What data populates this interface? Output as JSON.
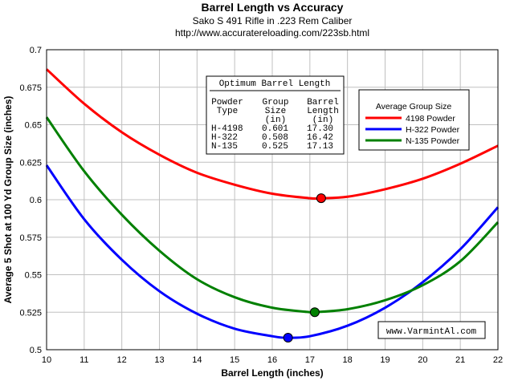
{
  "chart_data": {
    "type": "line",
    "title": "Barrel Length vs Accuracy",
    "subtitle": "Sako S 491 Rifle in .223 Rem Caliber",
    "url": "http://www.accuratereloading.com/223sb.html",
    "xlabel": "Barrel Length (inches)",
    "ylabel": "Average 5 Shot at 100 Yd Group Size (inches)",
    "xlim": [
      10,
      22
    ],
    "ylim": [
      0.5,
      0.7
    ],
    "grid": true,
    "x_ticks": [
      "10",
      "11",
      "12",
      "13",
      "14",
      "15",
      "16",
      "17",
      "18",
      "19",
      "20",
      "21",
      "22"
    ],
    "y_ticks": [
      "0.5",
      "0.525",
      "0.55",
      "0.575",
      "0.6",
      "0.625",
      "0.65",
      "0.675",
      "0.7"
    ],
    "legend": {
      "title": "Average Group Size",
      "position": "top-right",
      "entries": [
        "4198 Powder",
        "H-322 Powder",
        "N-135 Powder"
      ]
    },
    "series": [
      {
        "name": "4198 Powder",
        "color": "#ff0000",
        "x": [
          10,
          11,
          12,
          13,
          14,
          15,
          16,
          17,
          17.3,
          18,
          19,
          20,
          21,
          22
        ],
        "values": [
          0.687,
          0.664,
          0.645,
          0.63,
          0.618,
          0.61,
          0.604,
          0.601,
          0.601,
          0.602,
          0.607,
          0.614,
          0.624,
          0.636
        ],
        "optimum": {
          "x": 17.3,
          "y": 0.601
        }
      },
      {
        "name": "H-322 Powder",
        "color": "#0000ff",
        "x": [
          10,
          11,
          12,
          13,
          14,
          15,
          16,
          16.42,
          17,
          18,
          19,
          20,
          21,
          22
        ],
        "values": [
          0.623,
          0.587,
          0.56,
          0.539,
          0.524,
          0.514,
          0.509,
          0.508,
          0.509,
          0.516,
          0.528,
          0.545,
          0.567,
          0.595
        ],
        "optimum": {
          "x": 16.42,
          "y": 0.508
        }
      },
      {
        "name": "N-135 Powder",
        "color": "#008000",
        "x": [
          10,
          11,
          12,
          13,
          14,
          15,
          16,
          17,
          17.13,
          18,
          19,
          20,
          21,
          22
        ],
        "values": [
          0.655,
          0.619,
          0.59,
          0.566,
          0.547,
          0.535,
          0.528,
          0.525,
          0.525,
          0.527,
          0.533,
          0.543,
          0.559,
          0.585
        ],
        "optimum": {
          "x": 17.13,
          "y": 0.525
        }
      }
    ],
    "table": {
      "title": "Optimum Barrel Length",
      "headers": [
        [
          "Powder",
          "Type",
          ""
        ],
        [
          "Group",
          "Size",
          "(in)"
        ],
        [
          "Barrel",
          "Length",
          "(in)"
        ]
      ],
      "rows": [
        [
          "H-4198",
          "0.601",
          "17.30"
        ],
        [
          "H-322",
          "0.508",
          "16.42"
        ],
        [
          "N-135",
          "0.525",
          "17.13"
        ]
      ]
    },
    "watermark": "www.VarmintAl.com"
  },
  "colors": {
    "background": "#ffffff",
    "grid": "#c0c0c0",
    "frame": "#000000"
  }
}
